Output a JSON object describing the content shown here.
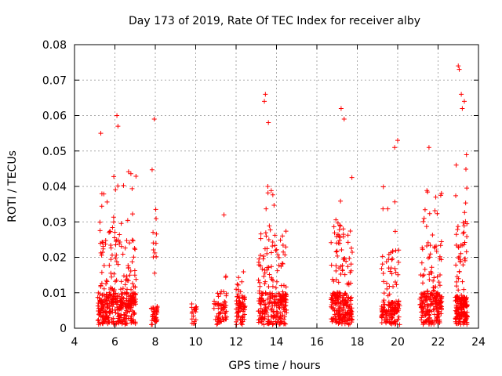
{
  "chart_data": {
    "type": "scatter",
    "title": "Day 173 of 2019, Rate Of TEC Index for receiver alby",
    "xlabel": "GPS time / hours",
    "ylabel": "ROTI / TECUs",
    "xlim": [
      4,
      24
    ],
    "ylim": [
      0,
      0.08
    ],
    "xticks": [
      4,
      6,
      8,
      10,
      12,
      14,
      16,
      18,
      20,
      22,
      24
    ],
    "yticks": [
      0,
      0.01,
      0.02,
      0.03,
      0.04,
      0.05,
      0.06,
      0.07,
      0.08
    ],
    "ytick_labels": [
      "0",
      "0.01",
      "0.02",
      "0.03",
      "0.04",
      "0.05",
      "0.06",
      "0.07",
      "0.08"
    ],
    "grid": true,
    "marker": "+",
    "color": "#ff0000",
    "clusters": [
      {
        "x_start": 5.15,
        "x_end": 7.05,
        "y_base": 0.007,
        "y_peak": 0.045,
        "density": 420
      },
      {
        "x_start": 7.8,
        "x_end": 8.1,
        "y_base": 0.004,
        "y_peak": 0.055,
        "density": 50
      },
      {
        "x_start": 9.8,
        "x_end": 10.05,
        "y_base": 0.004,
        "y_peak": 0.012,
        "density": 20
      },
      {
        "x_start": 10.9,
        "x_end": 11.55,
        "y_base": 0.005,
        "y_peak": 0.015,
        "density": 60
      },
      {
        "x_start": 12.0,
        "x_end": 12.45,
        "y_base": 0.006,
        "y_peak": 0.02,
        "density": 70
      },
      {
        "x_start": 13.1,
        "x_end": 14.5,
        "y_base": 0.007,
        "y_peak": 0.045,
        "density": 260
      },
      {
        "x_start": 16.7,
        "x_end": 17.75,
        "y_base": 0.007,
        "y_peak": 0.05,
        "density": 240
      },
      {
        "x_start": 19.2,
        "x_end": 20.1,
        "y_base": 0.005,
        "y_peak": 0.04,
        "density": 160
      },
      {
        "x_start": 21.1,
        "x_end": 22.2,
        "y_base": 0.007,
        "y_peak": 0.04,
        "density": 230
      },
      {
        "x_start": 22.85,
        "x_end": 23.45,
        "y_base": 0.006,
        "y_peak": 0.05,
        "density": 200
      }
    ],
    "outliers": [
      {
        "x": 6.1,
        "y": 0.06
      },
      {
        "x": 6.15,
        "y": 0.057
      },
      {
        "x": 5.3,
        "y": 0.055
      },
      {
        "x": 7.95,
        "y": 0.059
      },
      {
        "x": 11.4,
        "y": 0.032
      },
      {
        "x": 13.45,
        "y": 0.066
      },
      {
        "x": 13.4,
        "y": 0.064
      },
      {
        "x": 13.6,
        "y": 0.058
      },
      {
        "x": 17.2,
        "y": 0.062
      },
      {
        "x": 17.35,
        "y": 0.059
      },
      {
        "x": 19.85,
        "y": 0.051
      },
      {
        "x": 20.0,
        "y": 0.053
      },
      {
        "x": 21.55,
        "y": 0.051
      },
      {
        "x": 23.0,
        "y": 0.074
      },
      {
        "x": 23.05,
        "y": 0.073
      },
      {
        "x": 23.15,
        "y": 0.066
      },
      {
        "x": 23.3,
        "y": 0.064
      },
      {
        "x": 23.2,
        "y": 0.062
      }
    ]
  }
}
